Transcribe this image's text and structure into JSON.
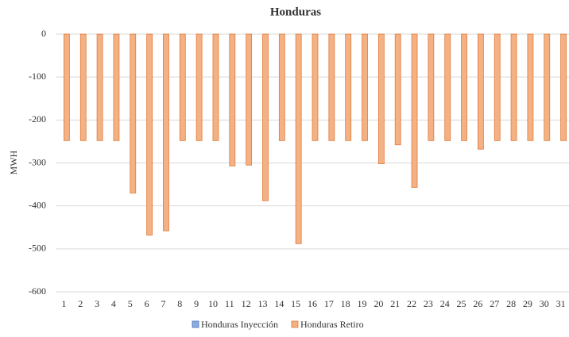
{
  "chart_data": {
    "type": "bar",
    "title": "Honduras",
    "y_label": "MWH",
    "categories": [
      "1",
      "2",
      "3",
      "4",
      "5",
      "6",
      "7",
      "8",
      "9",
      "10",
      "11",
      "12",
      "13",
      "14",
      "15",
      "16",
      "17",
      "18",
      "19",
      "20",
      "21",
      "22",
      "23",
      "24",
      "25",
      "26",
      "27",
      "28",
      "29",
      "30",
      "31"
    ],
    "series": [
      {
        "name": "Honduras Inyección",
        "color": "#8faadc",
        "values": [
          0,
          0,
          0,
          0,
          0,
          0,
          0,
          0,
          0,
          0,
          0,
          0,
          0,
          0,
          0,
          0,
          0,
          0,
          0,
          0,
          0,
          0,
          0,
          0,
          0,
          0,
          0,
          0,
          0,
          0,
          0
        ]
      },
      {
        "name": "Honduras Retiro",
        "color": "#f4b183",
        "values": [
          -248,
          -248,
          -248,
          -248,
          -370,
          -468,
          -458,
          -248,
          -248,
          -248,
          -307,
          -305,
          -388,
          -248,
          -488,
          -248,
          -248,
          -248,
          -248,
          -302,
          -258,
          -357,
          -248,
          -248,
          -248,
          -268,
          -248,
          -248,
          -248,
          -248,
          -248
        ]
      }
    ],
    "ylim": [
      -600,
      0
    ],
    "yticks": [
      0,
      -100,
      -200,
      -300,
      -400,
      -500,
      -600
    ],
    "grid": true,
    "legend": "bottom"
  }
}
